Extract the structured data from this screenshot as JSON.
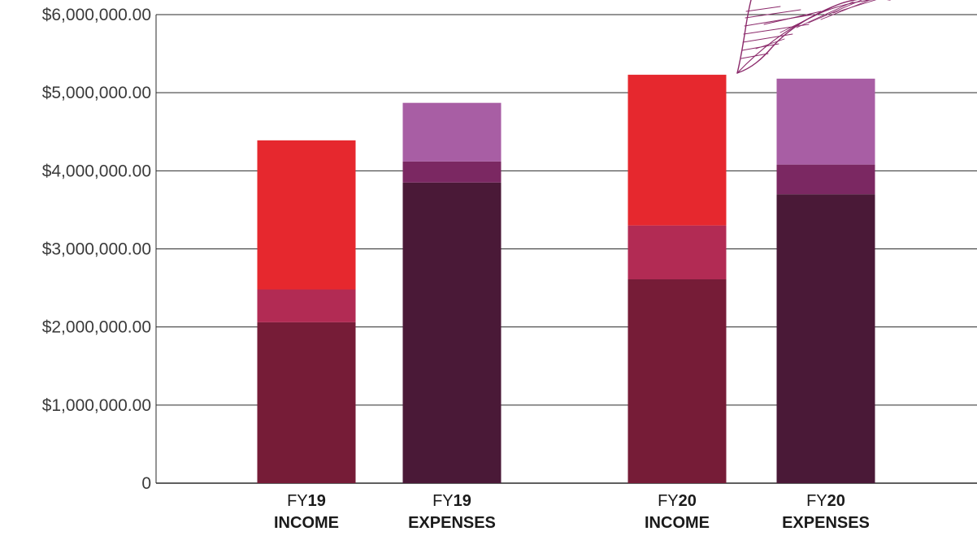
{
  "chart_data": {
    "type": "bar",
    "stacked": true,
    "y_tick_labels": [
      "0",
      "$1,000,000.00",
      "$2,000,000.00",
      "$3,000,000.00",
      "$4,000,000.00",
      "$5,000,000.00",
      "$6,000,000.00"
    ],
    "y_ticks": [
      0,
      1000000,
      2000000,
      3000000,
      4000000,
      5000000,
      6000000
    ],
    "ylim": [
      0,
      6000000
    ],
    "grid": "horizontal",
    "categories": [
      {
        "prefix": "FY",
        "year": "19",
        "label": "INCOME"
      },
      {
        "prefix": "FY",
        "year": "19",
        "label": "EXPENSES"
      },
      {
        "prefix": "FY",
        "year": "20",
        "label": "INCOME"
      },
      {
        "prefix": "FY",
        "year": "20",
        "label": "EXPENSES"
      }
    ],
    "bars": [
      {
        "segments": [
          {
            "value": 2060000,
            "color": "#761c37"
          },
          {
            "value": 420000,
            "color": "#b22b54"
          },
          {
            "value": 1910000,
            "color": "#e6282e"
          }
        ]
      },
      {
        "segments": [
          {
            "value": 3850000,
            "color": "#4a1937"
          },
          {
            "value": 270000,
            "color": "#7b2862"
          },
          {
            "value": 750000,
            "color": "#a85ea4"
          }
        ]
      },
      {
        "segments": [
          {
            "value": 2610000,
            "color": "#761c37"
          },
          {
            "value": 690000,
            "color": "#b22b54"
          },
          {
            "value": 1930000,
            "color": "#e6282e"
          }
        ]
      },
      {
        "segments": [
          {
            "value": 3700000,
            "color": "#4a1937"
          },
          {
            "value": 380000,
            "color": "#7b2862"
          },
          {
            "value": 1100000,
            "color": "#a85ea4"
          }
        ]
      }
    ],
    "decoration": {
      "name": "feather-sketch",
      "color": "#8b2a6b"
    }
  }
}
